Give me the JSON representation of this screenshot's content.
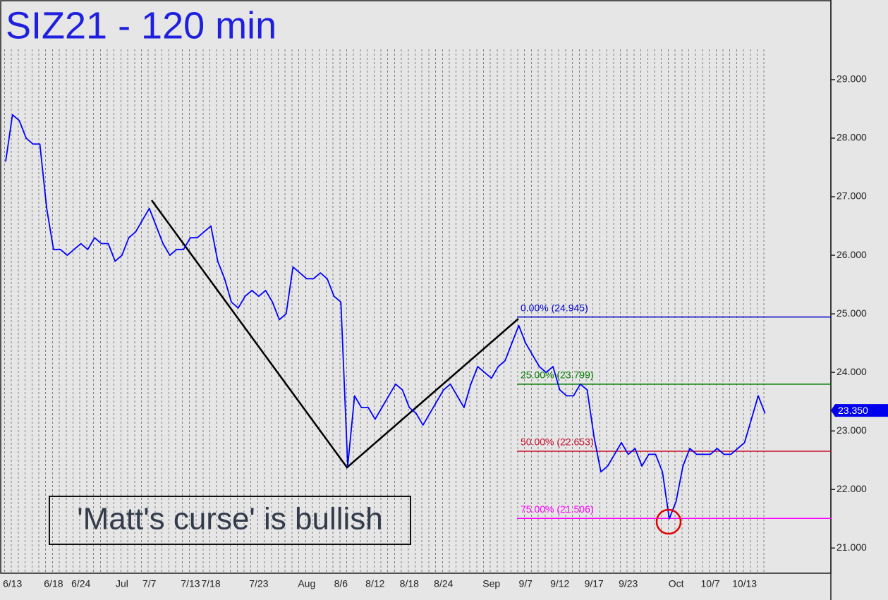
{
  "chart_data": {
    "type": "line",
    "title": "SIZ21 - 120 min",
    "annotation": "'Matt's curse' is bullish",
    "categories": [
      null,
      "6/13",
      null,
      null,
      null,
      null,
      null,
      "6/18",
      null,
      null,
      null,
      "6/24",
      null,
      null,
      null,
      null,
      null,
      "Jul",
      null,
      null,
      null,
      "7/7",
      null,
      null,
      null,
      null,
      null,
      "7/13",
      null,
      null,
      "7/18",
      null,
      null,
      null,
      null,
      null,
      null,
      "7/23",
      null,
      null,
      null,
      null,
      null,
      null,
      "Aug",
      null,
      null,
      null,
      null,
      "8/6",
      null,
      null,
      null,
      null,
      "8/12",
      null,
      null,
      null,
      null,
      "8/18",
      null,
      null,
      null,
      null,
      "8/24",
      null,
      null,
      null,
      null,
      null,
      null,
      "Sep",
      null,
      null,
      null,
      null,
      "9/7",
      null,
      null,
      null,
      null,
      "9/12",
      null,
      null,
      null,
      null,
      "9/17",
      null,
      null,
      null,
      null,
      "9/23",
      null,
      null,
      null,
      null,
      null,
      null,
      "Oct",
      null,
      null,
      null,
      null,
      "10/7",
      null,
      null,
      null,
      null,
      "10/13",
      null,
      null,
      null
    ],
    "series": [
      {
        "color": "#0000ff",
        "values": [
          27.6,
          28.4,
          28.3,
          28.0,
          27.9,
          27.9,
          26.8,
          26.1,
          26.1,
          26.0,
          26.1,
          26.2,
          26.1,
          26.3,
          26.2,
          26.2,
          25.9,
          26.0,
          26.3,
          26.4,
          26.6,
          26.8,
          26.5,
          26.2,
          26.0,
          26.1,
          26.1,
          26.3,
          26.3,
          26.4,
          26.5,
          25.9,
          25.6,
          25.2,
          25.1,
          25.3,
          25.4,
          25.3,
          25.4,
          25.2,
          24.9,
          25.0,
          25.8,
          25.7,
          25.6,
          25.6,
          25.7,
          25.6,
          25.3,
          25.2,
          22.4,
          23.6,
          23.4,
          23.4,
          23.2,
          23.4,
          23.6,
          23.8,
          23.7,
          23.4,
          23.3,
          23.1,
          23.3,
          23.5,
          23.7,
          23.8,
          23.6,
          23.4,
          23.8,
          24.1,
          24.0,
          23.9,
          24.1,
          24.2,
          24.5,
          24.8,
          24.5,
          24.3,
          24.1,
          24.0,
          24.1,
          23.7,
          23.6,
          23.6,
          23.8,
          23.7,
          22.9,
          22.3,
          22.4,
          22.6,
          22.8,
          22.6,
          22.7,
          22.4,
          22.6,
          22.6,
          22.3,
          21.5,
          21.8,
          22.4,
          22.7,
          22.6,
          22.6,
          22.6,
          22.7,
          22.6,
          22.6,
          22.7,
          22.8,
          23.2,
          23.6,
          23.3
        ]
      }
    ],
    "ylim": [
      20.57,
      30.36
    ],
    "yticks": [
      {
        "value": 21,
        "label": "21.000"
      },
      {
        "value": 22,
        "label": "22.000"
      },
      {
        "value": 23,
        "label": "23.000"
      },
      {
        "value": 24,
        "label": "24.000"
      },
      {
        "value": 25,
        "label": "25.000"
      },
      {
        "value": 26,
        "label": "26.000"
      },
      {
        "value": 27,
        "label": "27.000"
      },
      {
        "value": 28,
        "label": "28.000"
      },
      {
        "value": 29,
        "label": "29.000"
      }
    ],
    "last_price": {
      "value": 23.35,
      "label": "23.350",
      "color": "#0000ee"
    },
    "fib_levels": [
      {
        "value": 24.945,
        "label": "0.00% (24.945)",
        "color": "#0000cc"
      },
      {
        "value": 23.799,
        "label": "25.00% (23.799)",
        "color": "#007a00"
      },
      {
        "value": 22.653,
        "label": "50.00% (22.653)",
        "color": "#c8102e"
      },
      {
        "value": 21.506,
        "label": "75.00% (21.506)",
        "color": "#ff00ff"
      }
    ]
  }
}
